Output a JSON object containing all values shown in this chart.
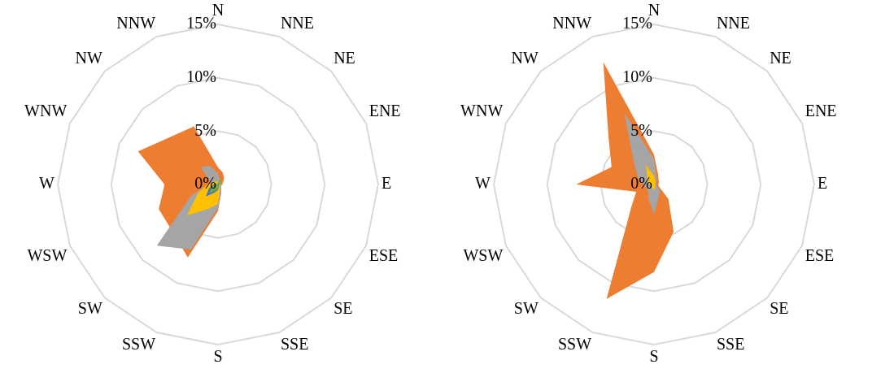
{
  "chart_data": [
    {
      "type": "radar",
      "categories": [
        "N",
        "NNE",
        "NE",
        "ENE",
        "E",
        "ESE",
        "SE",
        "SSE",
        "S",
        "SSW",
        "SW",
        "WSW",
        "W",
        "WNW",
        "NW",
        "NNW"
      ],
      "ylim": [
        0,
        15
      ],
      "yticks": [
        {
          "value": 0,
          "label": "0%"
        },
        {
          "value": 5,
          "label": "5%"
        },
        {
          "value": 10,
          "label": "10%"
        },
        {
          "value": 15,
          "label": "15%"
        }
      ],
      "grid": true,
      "legend": false,
      "series": [
        {
          "color": "#ed7d31",
          "values": [
            1.6,
            1.2,
            0.8,
            0.5,
            0.4,
            0.3,
            0.4,
            0.8,
            2.5,
            7.4,
            6.1,
            6.0,
            5.0,
            8.1,
            6.3,
            5.9
          ]
        },
        {
          "color": "#a5a5a5",
          "values": [
            1.0,
            0.5,
            0.4,
            0.3,
            0.3,
            0.3,
            0.4,
            0.8,
            2.2,
            6.6,
            8.1,
            2.7,
            0.9,
            0.8,
            2.3,
            1.9
          ]
        },
        {
          "color": "#ffc000",
          "values": [
            0.3,
            0.4,
            0.3,
            0.2,
            0.1,
            0.1,
            0.2,
            0.5,
            1.8,
            2.5,
            4.1,
            2.0,
            1.0,
            0.5,
            0.4,
            0.3
          ]
        },
        {
          "color": "#4472c4",
          "values": [
            0.1,
            0.2,
            0.2,
            0.1,
            0.1,
            0.1,
            0.1,
            0.2,
            0.5,
            0.8,
            1.6,
            0.9,
            0.4,
            0.2,
            0.1,
            0.1
          ]
        },
        {
          "color": "#70ad47",
          "values": [
            0.2,
            0.6,
            0.4,
            0.2,
            0.1,
            0.1,
            0.1,
            0.2,
            0.4,
            0.6,
            1.2,
            0.6,
            0.3,
            0.2,
            0.1,
            0.1
          ]
        }
      ]
    },
    {
      "type": "radar",
      "categories": [
        "N",
        "NNE",
        "NE",
        "ENE",
        "E",
        "ESE",
        "SE",
        "SSE",
        "S",
        "SSW",
        "SW",
        "WSW",
        "W",
        "WNW",
        "NW",
        "NNW"
      ],
      "ylim": [
        0,
        15
      ],
      "yticks": [
        {
          "value": 0,
          "label": "0%"
        },
        {
          "value": 5,
          "label": "5%"
        },
        {
          "value": 10,
          "label": "10%"
        },
        {
          "value": 15,
          "label": "15%"
        }
      ],
      "grid": true,
      "legend": false,
      "series": [
        {
          "color": "#ed7d31",
          "values": [
            2.8,
            1.0,
            0.6,
            0.5,
            0.4,
            0.5,
            1.9,
            4.8,
            8.2,
            11.6,
            3.0,
            1.8,
            7.3,
            4.3,
            6.0,
            12.4
          ]
        },
        {
          "color": "#a5a5a5",
          "values": [
            2.4,
            0.6,
            0.3,
            0.2,
            0.2,
            0.3,
            0.8,
            1.2,
            2.8,
            1.4,
            0.8,
            0.8,
            1.0,
            1.6,
            2.6,
            7.3
          ]
        },
        {
          "color": "#ffc000",
          "values": [
            0.8,
            0.3,
            0.2,
            0.1,
            0.1,
            0.1,
            0.2,
            0.3,
            0.5,
            0.4,
            0.3,
            0.3,
            0.4,
            0.6,
            0.9,
            2.0
          ]
        }
      ]
    }
  ]
}
